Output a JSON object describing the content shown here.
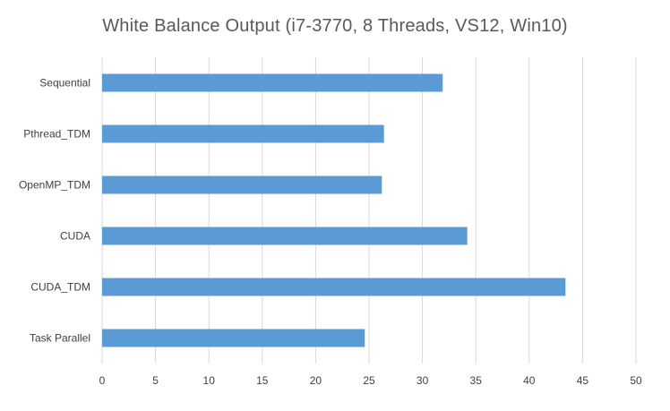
{
  "chart_data": {
    "type": "bar",
    "orientation": "horizontal",
    "title": "White Balance Output (i7-3770, 8 Threads, VS12, Win10)",
    "categories": [
      "Sequential",
      "Pthread_TDM",
      "OpenMP_TDM",
      "CUDA",
      "CUDA_TDM",
      "Task Parallel"
    ],
    "values": [
      31.9,
      26.4,
      26.2,
      34.2,
      43.4,
      24.6
    ],
    "xlim": [
      0,
      50
    ],
    "xticks": [
      0,
      5,
      10,
      15,
      20,
      25,
      30,
      35,
      40,
      45,
      50
    ],
    "xlabel": "",
    "ylabel": "",
    "grid": true,
    "legend": "none",
    "bar_color": "#5B9BD5",
    "grid_color": "#D9D9D9"
  }
}
